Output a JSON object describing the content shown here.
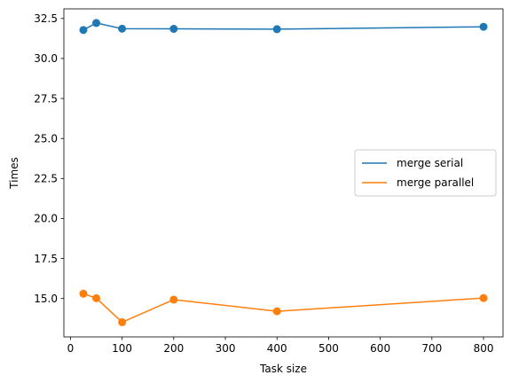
{
  "chart_data": {
    "type": "line",
    "x": [
      25,
      50,
      100,
      200,
      400,
      800
    ],
    "series": [
      {
        "name": "merge serial",
        "color": "#1f77b4",
        "values": [
          31.78,
          32.22,
          31.86,
          31.85,
          31.83,
          31.98
        ]
      },
      {
        "name": "merge parallel",
        "color": "#ff7f0e",
        "values": [
          15.3,
          15.02,
          13.52,
          14.93,
          14.2,
          15.03
        ]
      }
    ],
    "xlabel": "Task size",
    "ylabel": "Times",
    "xlim": [
      -12.75,
      837.75
    ],
    "ylim": [
      12.6,
      33.1
    ],
    "xticks": [
      0,
      100,
      200,
      300,
      400,
      500,
      600,
      700,
      800
    ],
    "yticks": [
      15.0,
      17.5,
      20.0,
      22.5,
      25.0,
      27.5,
      30.0,
      32.5
    ],
    "marker": "circle",
    "grid": false,
    "legend_position": "center-right"
  }
}
